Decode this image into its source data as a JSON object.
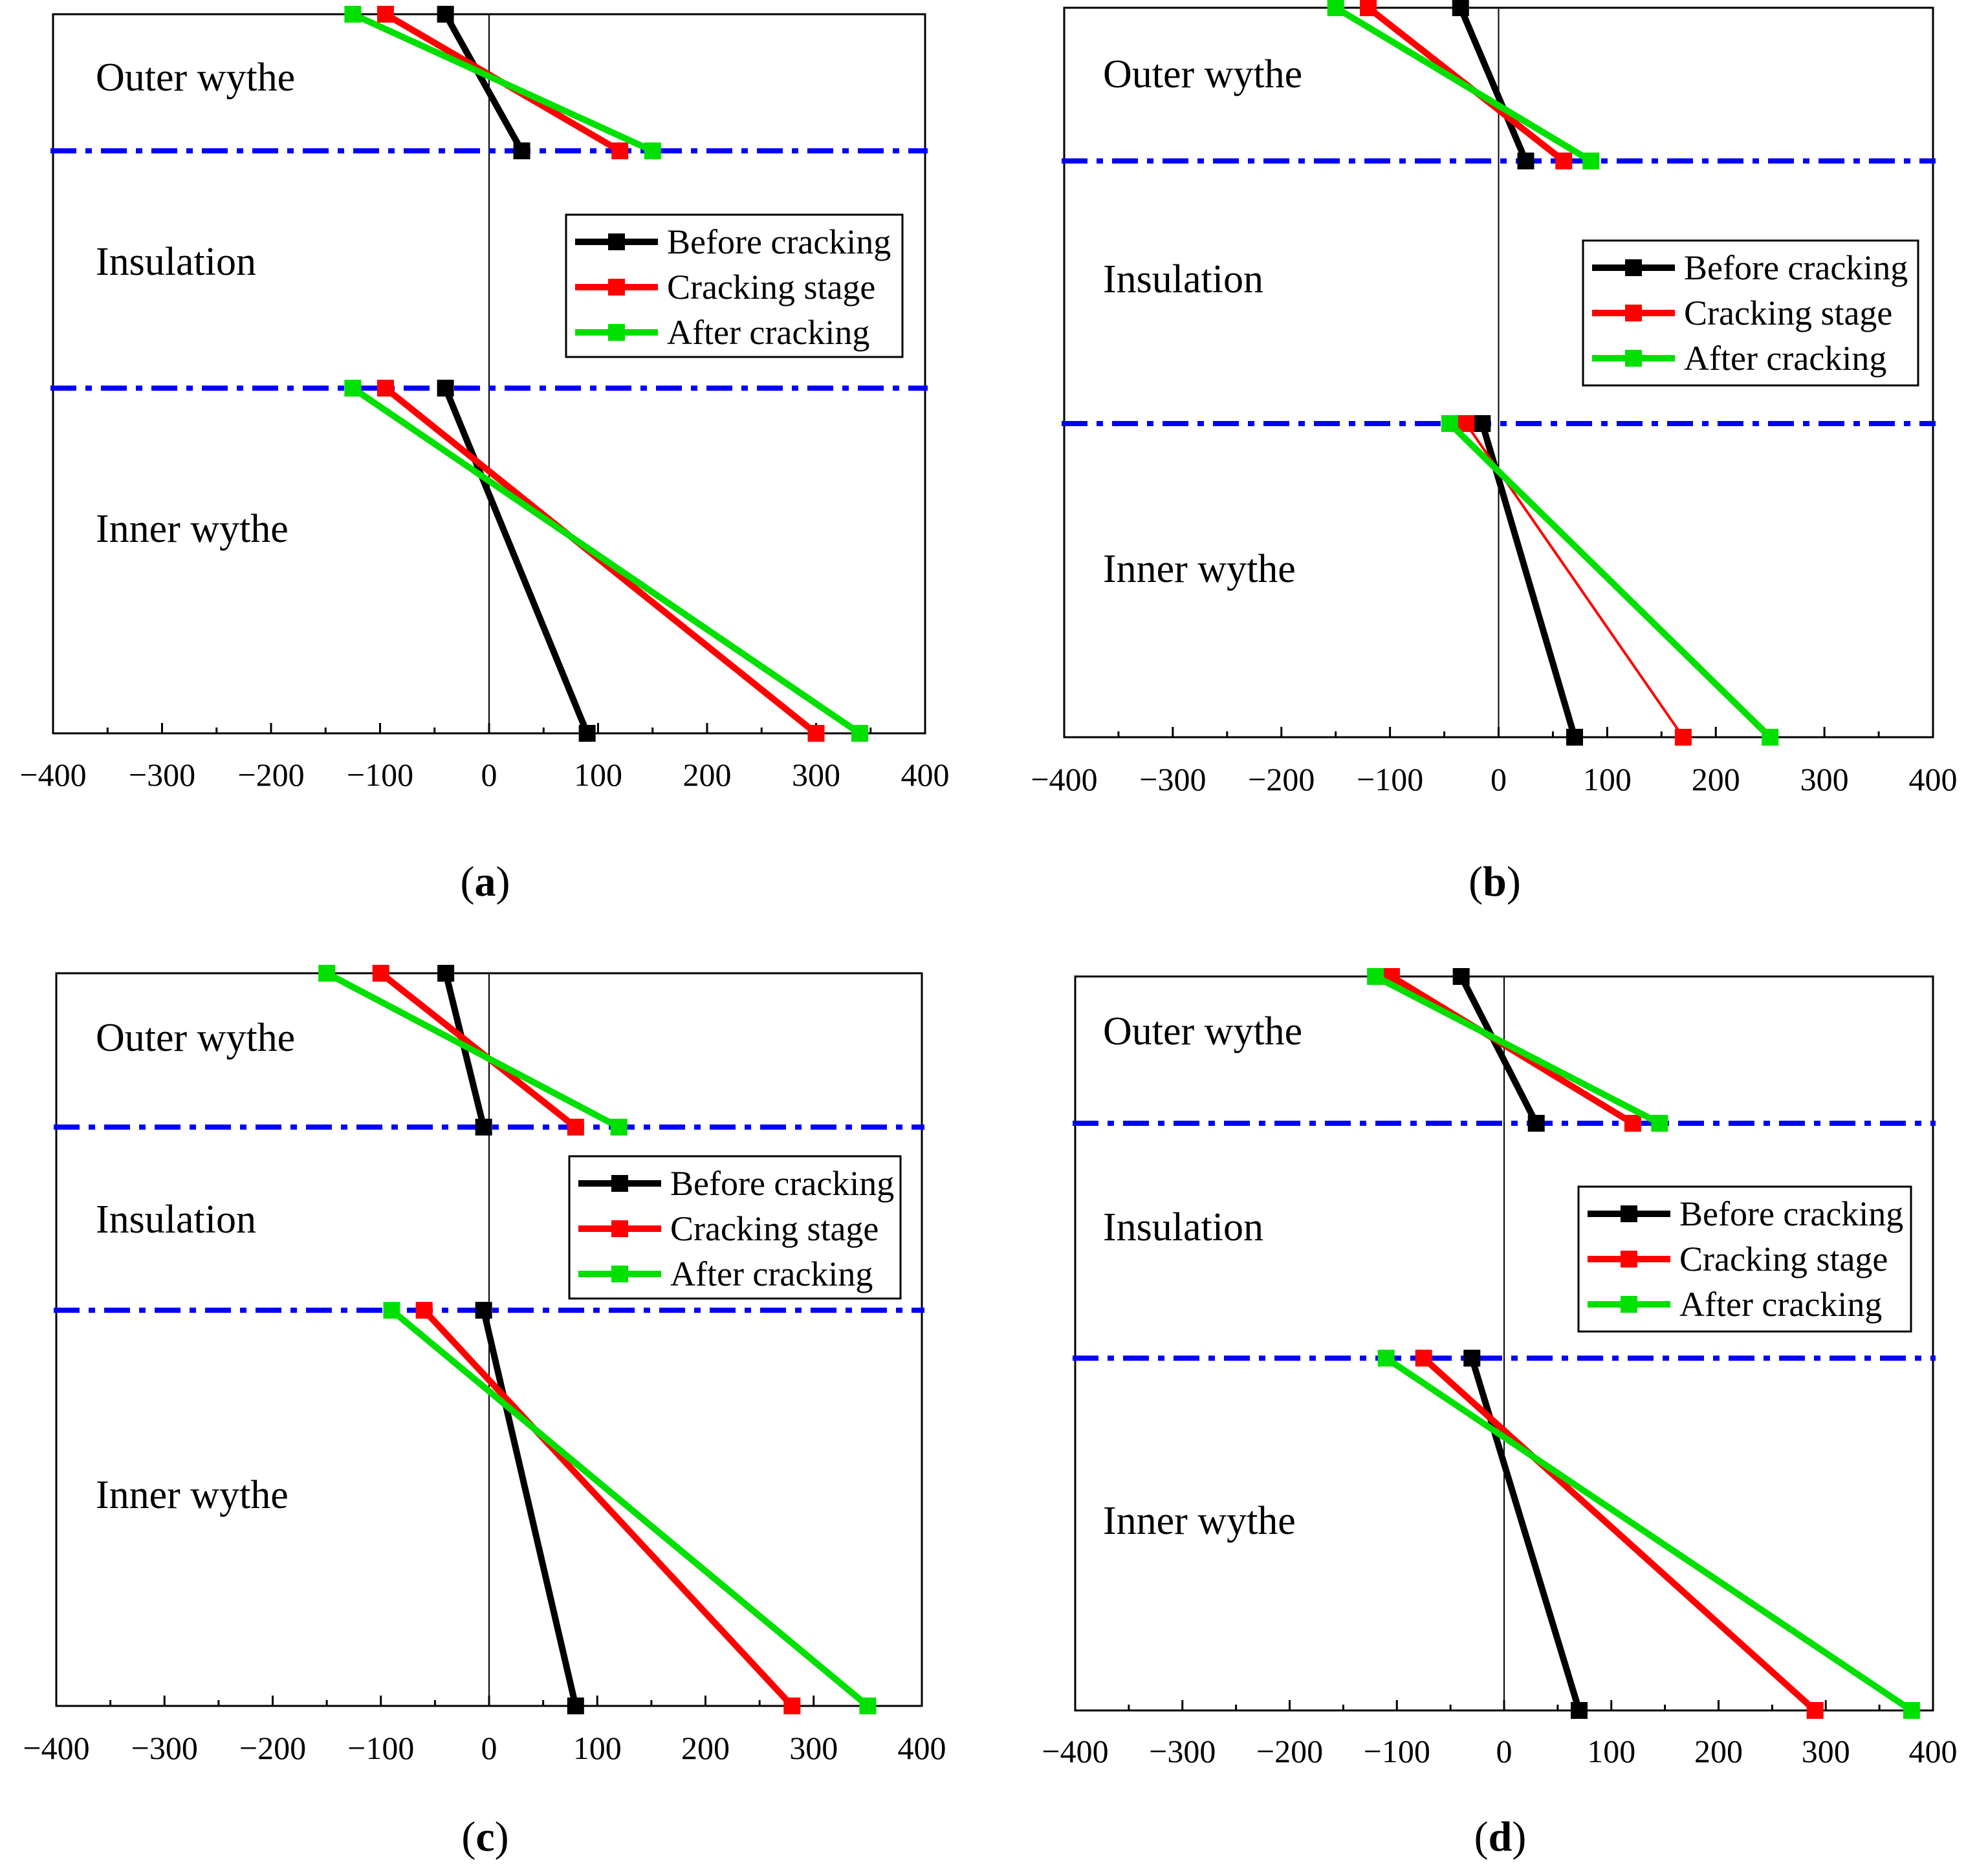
{
  "figure": {
    "panels": [
      {
        "id": "a",
        "caption_letter": "a"
      },
      {
        "id": "b",
        "caption_letter": "b"
      },
      {
        "id": "c",
        "caption_letter": "c"
      },
      {
        "id": "d",
        "caption_letter": "d"
      }
    ]
  },
  "chart_data": [
    {
      "type": "line",
      "panel": "a",
      "caption": "(a)",
      "xlim": [
        -400,
        400
      ],
      "x_ticks": [
        -400,
        -300,
        -200,
        -100,
        0,
        100,
        200,
        300,
        400
      ],
      "x_tick_labels": [
        "−400",
        "−300",
        "−200",
        "−100",
        "0",
        "100",
        "200",
        "300",
        "400"
      ],
      "y_levels": {
        "outer_top": 0,
        "interface_outer": 0.19,
        "interface_inner": 0.52,
        "inner_bottom": 1
      },
      "regions": [
        "Outer wythe",
        "Insulation",
        "Inner wythe"
      ],
      "legend": [
        "Before cracking",
        "Cracking stage",
        "After cracking"
      ],
      "series": [
        {
          "name": "Before cracking",
          "color": "#000000",
          "outer": [
            -40,
            30
          ],
          "inner": [
            -40,
            90
          ]
        },
        {
          "name": "Cracking stage",
          "color": "#ff0000",
          "outer": [
            -95,
            120
          ],
          "inner": [
            -95,
            300
          ]
        },
        {
          "name": "After cracking",
          "color": "#00e000",
          "outer": [
            -125,
            150
          ],
          "inner": [
            -125,
            340
          ]
        }
      ]
    },
    {
      "type": "line",
      "panel": "b",
      "caption": "(b)",
      "xlim": [
        -400,
        400
      ],
      "x_ticks": [
        -400,
        -300,
        -200,
        -100,
        0,
        100,
        200,
        300,
        400
      ],
      "x_tick_labels": [
        "−400",
        "−300",
        "−200",
        "−100",
        "0",
        "100",
        "200",
        "300",
        "400"
      ],
      "y_levels": {
        "outer_top": 0,
        "interface_outer": 0.21,
        "interface_inner": 0.57,
        "inner_bottom": 1
      },
      "regions": [
        "Outer wythe",
        "Insulation",
        "Inner wythe"
      ],
      "legend": [
        "Before cracking",
        "Cracking stage",
        "After cracking"
      ],
      "series": [
        {
          "name": "Before cracking",
          "color": "#000000",
          "outer": [
            -35,
            25
          ],
          "inner": [
            -15,
            70
          ]
        },
        {
          "name": "Cracking stage",
          "color": "#ff0000",
          "outer": [
            -120,
            60
          ],
          "inner": [
            -30,
            170
          ]
        },
        {
          "name": "After cracking",
          "color": "#00e000",
          "outer": [
            -150,
            85
          ],
          "inner": [
            -45,
            250
          ]
        }
      ]
    },
    {
      "type": "line",
      "panel": "c",
      "caption": "(c)",
      "xlim": [
        -400,
        400
      ],
      "x_ticks": [
        -400,
        -300,
        -200,
        -100,
        0,
        100,
        200,
        300,
        400
      ],
      "x_tick_labels": [
        "−400",
        "−300",
        "−200",
        "−100",
        "0",
        "100",
        "200",
        "300",
        "400"
      ],
      "y_levels": {
        "outer_top": 0,
        "interface_outer": 0.21,
        "interface_inner": 0.46,
        "inner_bottom": 1
      },
      "regions": [
        "Outer wythe",
        "Insulation",
        "Inner wythe"
      ],
      "legend": [
        "Before cracking",
        "Cracking stage",
        "After cracking"
      ],
      "series": [
        {
          "name": "Before cracking",
          "color": "#000000",
          "outer": [
            -40,
            -5
          ],
          "inner": [
            -5,
            80
          ]
        },
        {
          "name": "Cracking stage",
          "color": "#ff0000",
          "outer": [
            -100,
            80
          ],
          "inner": [
            -60,
            280
          ]
        },
        {
          "name": "After cracking",
          "color": "#00e000",
          "outer": [
            -150,
            120
          ],
          "inner": [
            -90,
            350
          ]
        }
      ]
    },
    {
      "type": "line",
      "panel": "d",
      "caption": "(d)",
      "xlim": [
        -400,
        400
      ],
      "x_ticks": [
        -400,
        -300,
        -200,
        -100,
        0,
        100,
        200,
        300,
        400
      ],
      "x_tick_labels": [
        "−400",
        "−300",
        "−200",
        "−100",
        "0",
        "100",
        "200",
        "300",
        "400"
      ],
      "y_levels": {
        "outer_top": 0,
        "interface_outer": 0.2,
        "interface_inner": 0.52,
        "inner_bottom": 1
      },
      "regions": [
        "Outer wythe",
        "Insulation",
        "Inner wythe"
      ],
      "legend": [
        "Before cracking",
        "Cracking stage",
        "After cracking"
      ],
      "series": [
        {
          "name": "Before cracking",
          "color": "#000000",
          "outer": [
            -40,
            30
          ],
          "inner": [
            -30,
            70
          ]
        },
        {
          "name": "Cracking stage",
          "color": "#ff0000",
          "outer": [
            -105,
            120
          ],
          "inner": [
            -75,
            290
          ]
        },
        {
          "name": "After cracking",
          "color": "#00e000",
          "outer": [
            -120,
            145
          ],
          "inner": [
            -110,
            380
          ]
        }
      ]
    }
  ],
  "colors": {
    "interface_line": "#0000ff",
    "axis": "#000000"
  }
}
